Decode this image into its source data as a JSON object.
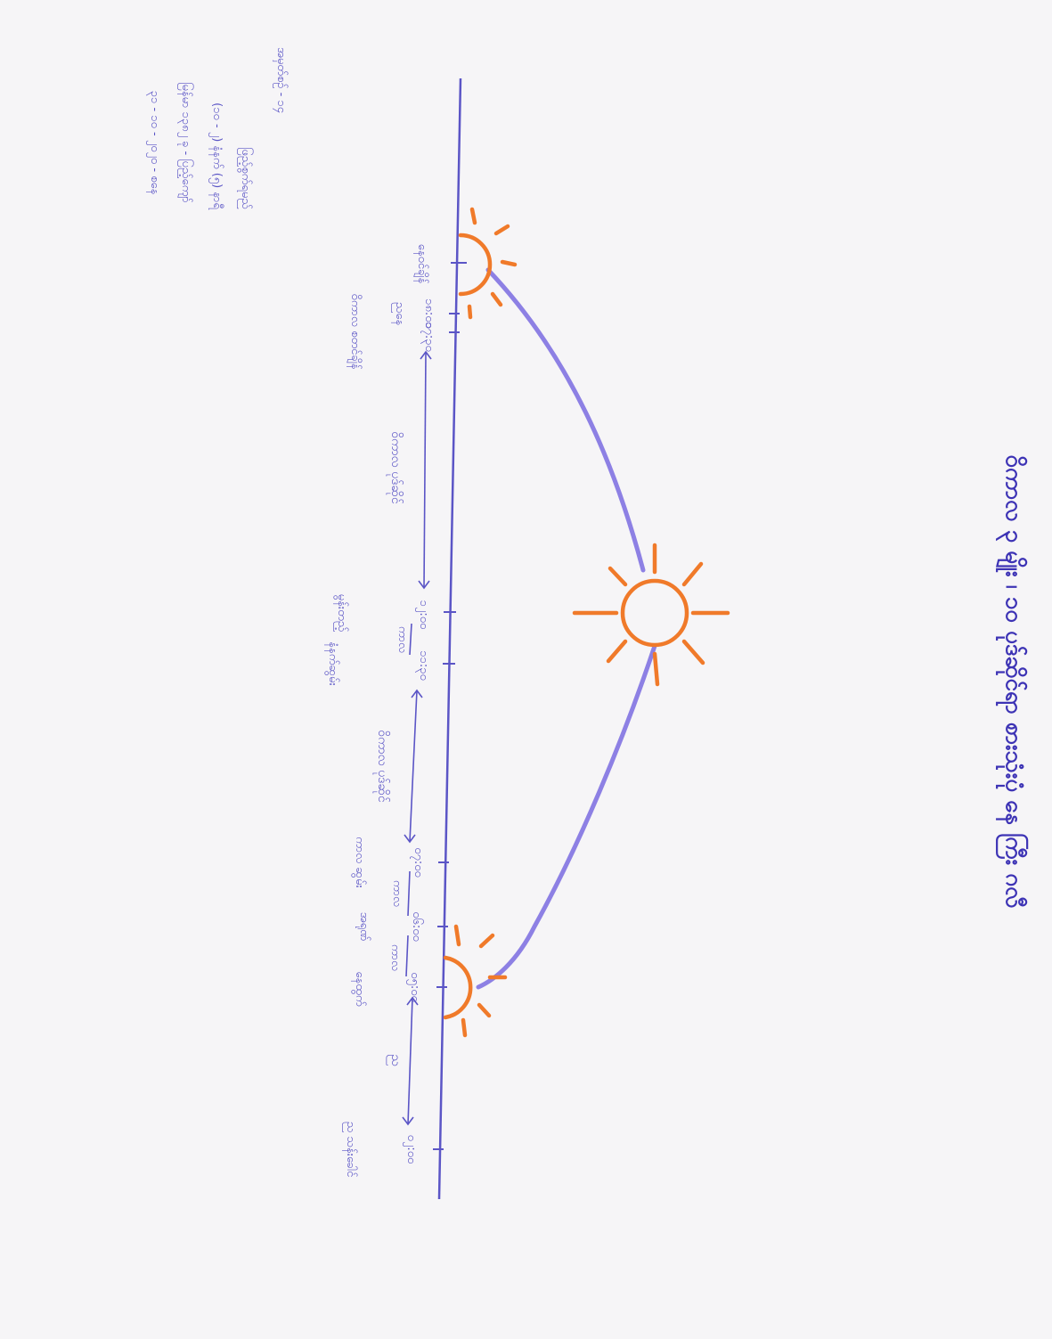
{
  "title": "ဝိကာလ ၃ မျိုး ၊ ၁၀ ပုဒ်ဆိုင်ရာ စားသုံးပုံ နေ ကြီး ဂလီ",
  "colors": {
    "ink": "#5b55c6",
    "sun": "#f07a2a",
    "arc": "#8d80e4",
    "paper": "#f6f5f7"
  },
  "notes": [
    "၃၁ - ၁၀ - ၂၀၂၀ - စနေ",
    "မြန်မာ ၁၃၈၂ ခု - ပြည့်ကျော်",
    "(၁၀ - ၂) နံနက် (၅) နာရီ",
    "ဖြည့်စွက်ရမည်",
    "အမှတ်စဉ် - ၁၄"
  ],
  "ticks": [
    {
      "time": "",
      "label": "နေဝင်ချိန်"
    },
    {
      "time": "၁၈:၀၀",
      "label": "ညနေ"
    },
    {
      "time": "၁၇:၃၀",
      "label": "ဝိကာလ စတင်ချိန်"
    },
    {
      "time": "၁၂:၀၀",
      "label": "မွန်းတည့်"
    },
    {
      "time": "၁၁:၃၀",
      "label": "နံနက်ဆွမ်း"
    },
    {
      "time": "၀၇:၀၀",
      "label": "ကာလ ဆွမ်း"
    },
    {
      "time": "၀၆:၀၀",
      "label": "အရုဏ်"
    },
    {
      "time": "၀၅:၀၀",
      "label": "နေထွက်"
    },
    {
      "time": "၀၂:၀၀",
      "label": "ည သန်းခေါင်"
    }
  ],
  "span_labels": [
    "ဝိကာလ ပုဒ်ဆိုင်",
    "ကာလ",
    "ဝိကာလ ပုဒ်ဆိုင်",
    "ကာလ",
    "ကာလ",
    "ည"
  ]
}
